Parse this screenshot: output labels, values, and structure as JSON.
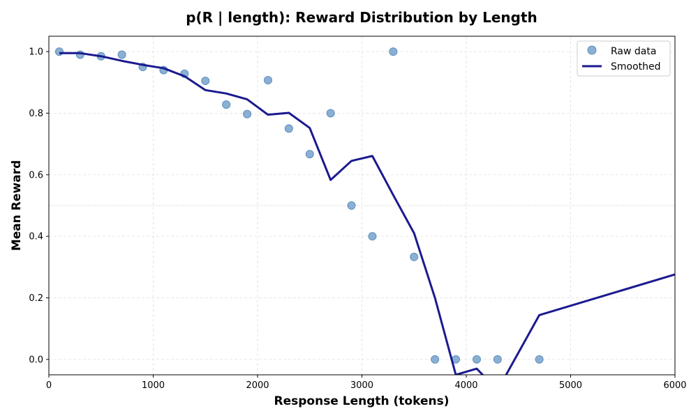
{
  "chart_data": {
    "type": "line",
    "title": "p(R | length): Reward Distribution by Length",
    "xlabel": "Response Length (tokens)",
    "ylabel": "Mean Reward",
    "xlim": [
      0,
      6000
    ],
    "ylim": [
      -0.05,
      1.05
    ],
    "xticks": [
      0,
      1000,
      2000,
      3000,
      4000,
      5000,
      6000
    ],
    "yticks": [
      0.0,
      0.2,
      0.4,
      0.6,
      0.8,
      1.0
    ],
    "grid": true,
    "reference_line": {
      "y": 0.5,
      "style": "dotted"
    },
    "legend_position": "top-right",
    "series": [
      {
        "name": "Raw data",
        "kind": "scatter",
        "color": "#5b8fc0",
        "x": [
          100,
          300,
          500,
          700,
          900,
          1100,
          1300,
          1500,
          1700,
          1900,
          2100,
          2300,
          2500,
          2700,
          2900,
          3100,
          3300,
          3500,
          3700,
          3900,
          4100,
          4300,
          4700
        ],
        "y": [
          1.0,
          0.99,
          0.985,
          0.99,
          0.95,
          0.94,
          0.928,
          0.905,
          0.828,
          0.797,
          0.907,
          0.75,
          0.667,
          0.8,
          0.5,
          0.4,
          1.0,
          0.333,
          0.0,
          0.0,
          0.0,
          0.0,
          0.0
        ]
      },
      {
        "name": "Smoothed",
        "kind": "line",
        "color": "#1a1a8f",
        "x": [
          100,
          300,
          500,
          700,
          900,
          1100,
          1300,
          1500,
          1700,
          1900,
          2100,
          2300,
          2500,
          2700,
          2900,
          3100,
          3300,
          3500,
          3700,
          3900,
          4100,
          4300,
          4700,
          6000
        ],
        "y": [
          0.995,
          0.995,
          0.985,
          0.97,
          0.957,
          0.946,
          0.92,
          0.875,
          0.864,
          0.845,
          0.795,
          0.801,
          0.752,
          0.583,
          0.645,
          0.661,
          0.534,
          0.41,
          0.2,
          -0.05,
          -0.03,
          -0.1,
          0.144,
          0.276
        ]
      }
    ]
  }
}
